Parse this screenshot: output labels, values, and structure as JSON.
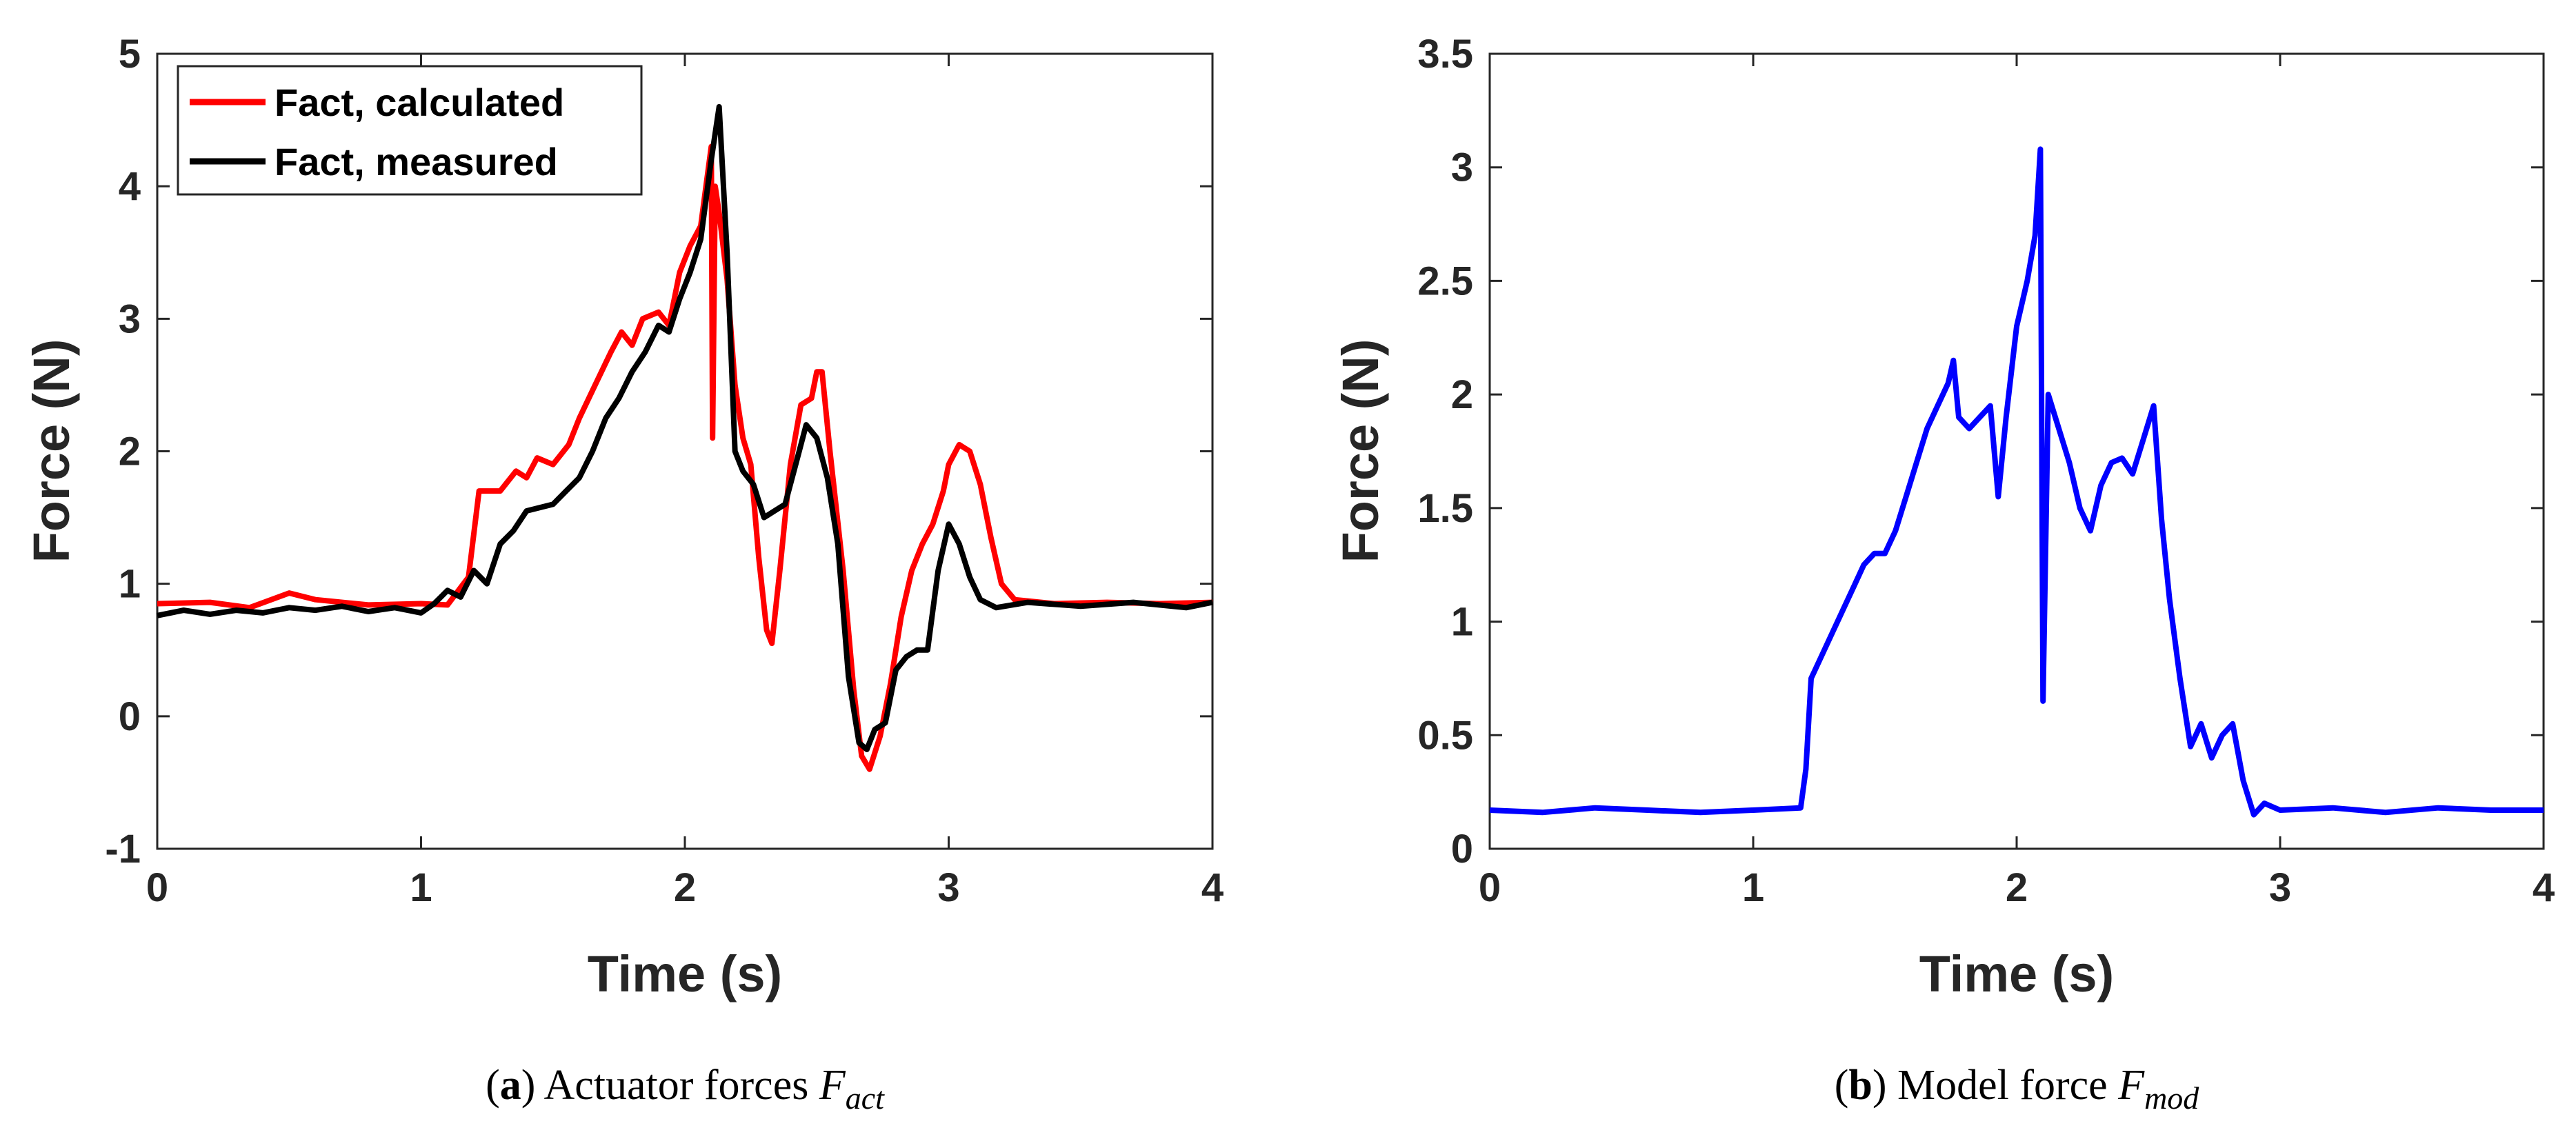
{
  "chart_data": [
    {
      "type": "line",
      "panel_label": "a",
      "caption_text": "Actuator forces ",
      "caption_symbol": "F",
      "caption_subscript": "act",
      "xlabel": "Time (s)",
      "ylabel": "Force (N)",
      "xlim": [
        0,
        4
      ],
      "ylim": [
        -1,
        5
      ],
      "xticks": [
        "0",
        "1",
        "2",
        "3",
        "4"
      ],
      "yticks": [
        "-1",
        "0",
        "1",
        "2",
        "3",
        "4",
        "5"
      ],
      "grid": false,
      "legend_position": "top-left",
      "series": [
        {
          "name": "Fact, calculated",
          "color": "#ff0000",
          "points": [
            [
              0,
              0.85
            ],
            [
              0.2,
              0.86
            ],
            [
              0.35,
              0.82
            ],
            [
              0.5,
              0.93
            ],
            [
              0.6,
              0.88
            ],
            [
              0.8,
              0.84
            ],
            [
              1.0,
              0.85
            ],
            [
              1.1,
              0.84
            ],
            [
              1.18,
              1.05
            ],
            [
              1.22,
              1.7
            ],
            [
              1.3,
              1.7
            ],
            [
              1.36,
              1.85
            ],
            [
              1.4,
              1.8
            ],
            [
              1.44,
              1.95
            ],
            [
              1.5,
              1.9
            ],
            [
              1.56,
              2.05
            ],
            [
              1.6,
              2.25
            ],
            [
              1.66,
              2.5
            ],
            [
              1.72,
              2.75
            ],
            [
              1.76,
              2.9
            ],
            [
              1.8,
              2.8
            ],
            [
              1.84,
              3.0
            ],
            [
              1.9,
              3.05
            ],
            [
              1.94,
              2.95
            ],
            [
              1.98,
              3.35
            ],
            [
              2.02,
              3.55
            ],
            [
              2.06,
              3.7
            ],
            [
              2.08,
              4.0
            ],
            [
              2.1,
              4.3
            ],
            [
              2.105,
              2.1
            ],
            [
              2.115,
              4.0
            ],
            [
              2.13,
              3.8
            ],
            [
              2.16,
              3.3
            ],
            [
              2.19,
              2.5
            ],
            [
              2.22,
              2.1
            ],
            [
              2.25,
              1.9
            ],
            [
              2.28,
              1.2
            ],
            [
              2.31,
              0.65
            ],
            [
              2.33,
              0.55
            ],
            [
              2.36,
              1.1
            ],
            [
              2.4,
              1.9
            ],
            [
              2.44,
              2.35
            ],
            [
              2.48,
              2.4
            ],
            [
              2.5,
              2.6
            ],
            [
              2.52,
              2.6
            ],
            [
              2.55,
              2.0
            ],
            [
              2.6,
              1.1
            ],
            [
              2.64,
              0.2
            ],
            [
              2.67,
              -0.3
            ],
            [
              2.7,
              -0.4
            ],
            [
              2.74,
              -0.15
            ],
            [
              2.78,
              0.25
            ],
            [
              2.82,
              0.75
            ],
            [
              2.86,
              1.1
            ],
            [
              2.9,
              1.3
            ],
            [
              2.94,
              1.45
            ],
            [
              2.98,
              1.7
            ],
            [
              3.0,
              1.9
            ],
            [
              3.04,
              2.05
            ],
            [
              3.08,
              2.0
            ],
            [
              3.12,
              1.75
            ],
            [
              3.16,
              1.35
            ],
            [
              3.2,
              1.0
            ],
            [
              3.25,
              0.88
            ],
            [
              3.4,
              0.85
            ],
            [
              3.6,
              0.86
            ],
            [
              3.8,
              0.85
            ],
            [
              4.0,
              0.86
            ]
          ]
        },
        {
          "name": "Fact, measured",
          "color": "#000000",
          "points": [
            [
              0,
              0.76
            ],
            [
              0.1,
              0.8
            ],
            [
              0.2,
              0.77
            ],
            [
              0.3,
              0.8
            ],
            [
              0.4,
              0.78
            ],
            [
              0.5,
              0.82
            ],
            [
              0.6,
              0.8
            ],
            [
              0.7,
              0.83
            ],
            [
              0.8,
              0.79
            ],
            [
              0.9,
              0.82
            ],
            [
              1.0,
              0.78
            ],
            [
              1.05,
              0.85
            ],
            [
              1.1,
              0.95
            ],
            [
              1.15,
              0.9
            ],
            [
              1.2,
              1.1
            ],
            [
              1.25,
              1.0
            ],
            [
              1.3,
              1.3
            ],
            [
              1.35,
              1.4
            ],
            [
              1.4,
              1.55
            ],
            [
              1.5,
              1.6
            ],
            [
              1.55,
              1.7
            ],
            [
              1.6,
              1.8
            ],
            [
              1.65,
              2.0
            ],
            [
              1.7,
              2.25
            ],
            [
              1.75,
              2.4
            ],
            [
              1.8,
              2.6
            ],
            [
              1.85,
              2.75
            ],
            [
              1.9,
              2.95
            ],
            [
              1.94,
              2.9
            ],
            [
              1.98,
              3.15
            ],
            [
              2.02,
              3.35
            ],
            [
              2.06,
              3.6
            ],
            [
              2.1,
              4.2
            ],
            [
              2.13,
              4.6
            ],
            [
              2.16,
              3.5
            ],
            [
              2.19,
              2.0
            ],
            [
              2.22,
              1.85
            ],
            [
              2.26,
              1.75
            ],
            [
              2.3,
              1.5
            ],
            [
              2.34,
              1.55
            ],
            [
              2.38,
              1.6
            ],
            [
              2.42,
              1.9
            ],
            [
              2.46,
              2.2
            ],
            [
              2.5,
              2.1
            ],
            [
              2.54,
              1.8
            ],
            [
              2.58,
              1.3
            ],
            [
              2.62,
              0.3
            ],
            [
              2.66,
              -0.2
            ],
            [
              2.69,
              -0.25
            ],
            [
              2.72,
              -0.1
            ],
            [
              2.76,
              -0.05
            ],
            [
              2.8,
              0.35
            ],
            [
              2.84,
              0.45
            ],
            [
              2.88,
              0.5
            ],
            [
              2.92,
              0.5
            ],
            [
              2.96,
              1.1
            ],
            [
              3.0,
              1.45
            ],
            [
              3.04,
              1.3
            ],
            [
              3.08,
              1.05
            ],
            [
              3.12,
              0.88
            ],
            [
              3.18,
              0.82
            ],
            [
              3.3,
              0.86
            ],
            [
              3.5,
              0.83
            ],
            [
              3.7,
              0.86
            ],
            [
              3.9,
              0.82
            ],
            [
              4.0,
              0.86
            ]
          ]
        }
      ]
    },
    {
      "type": "line",
      "panel_label": "b",
      "caption_text": "Model force ",
      "caption_symbol": "F",
      "caption_subscript": "mod",
      "xlabel": "Time (s)",
      "ylabel": "Force (N)",
      "xlim": [
        0,
        4
      ],
      "ylim": [
        0,
        3.5
      ],
      "xticks": [
        "0",
        "1",
        "2",
        "3",
        "4"
      ],
      "yticks": [
        "0",
        "0.5",
        "1",
        "1.5",
        "2",
        "2.5",
        "3",
        "3.5"
      ],
      "grid": false,
      "series": [
        {
          "name": "Fmod",
          "color": "#0000ff",
          "points": [
            [
              0,
              0.17
            ],
            [
              0.2,
              0.16
            ],
            [
              0.4,
              0.18
            ],
            [
              0.6,
              0.17
            ],
            [
              0.8,
              0.16
            ],
            [
              1.0,
              0.17
            ],
            [
              1.18,
              0.18
            ],
            [
              1.2,
              0.35
            ],
            [
              1.22,
              0.75
            ],
            [
              1.26,
              0.85
            ],
            [
              1.3,
              0.95
            ],
            [
              1.34,
              1.05
            ],
            [
              1.38,
              1.15
            ],
            [
              1.42,
              1.25
            ],
            [
              1.46,
              1.3
            ],
            [
              1.5,
              1.3
            ],
            [
              1.54,
              1.4
            ],
            [
              1.58,
              1.55
            ],
            [
              1.62,
              1.7
            ],
            [
              1.66,
              1.85
            ],
            [
              1.7,
              1.95
            ],
            [
              1.74,
              2.05
            ],
            [
              1.76,
              2.15
            ],
            [
              1.78,
              1.9
            ],
            [
              1.82,
              1.85
            ],
            [
              1.86,
              1.9
            ],
            [
              1.9,
              1.95
            ],
            [
              1.93,
              1.55
            ],
            [
              1.96,
              1.9
            ],
            [
              2.0,
              2.3
            ],
            [
              2.04,
              2.5
            ],
            [
              2.07,
              2.7
            ],
            [
              2.09,
              3.08
            ],
            [
              2.1,
              0.65
            ],
            [
              2.12,
              2.0
            ],
            [
              2.16,
              1.85
            ],
            [
              2.2,
              1.7
            ],
            [
              2.24,
              1.5
            ],
            [
              2.28,
              1.4
            ],
            [
              2.32,
              1.6
            ],
            [
              2.36,
              1.7
            ],
            [
              2.4,
              1.72
            ],
            [
              2.44,
              1.65
            ],
            [
              2.48,
              1.8
            ],
            [
              2.52,
              1.95
            ],
            [
              2.55,
              1.45
            ],
            [
              2.58,
              1.1
            ],
            [
              2.62,
              0.75
            ],
            [
              2.66,
              0.45
            ],
            [
              2.7,
              0.55
            ],
            [
              2.74,
              0.4
            ],
            [
              2.78,
              0.5
            ],
            [
              2.82,
              0.55
            ],
            [
              2.86,
              0.3
            ],
            [
              2.9,
              0.15
            ],
            [
              2.94,
              0.2
            ],
            [
              3.0,
              0.17
            ],
            [
              3.2,
              0.18
            ],
            [
              3.4,
              0.16
            ],
            [
              3.6,
              0.18
            ],
            [
              3.8,
              0.17
            ],
            [
              4.0,
              0.17
            ]
          ]
        }
      ]
    }
  ]
}
